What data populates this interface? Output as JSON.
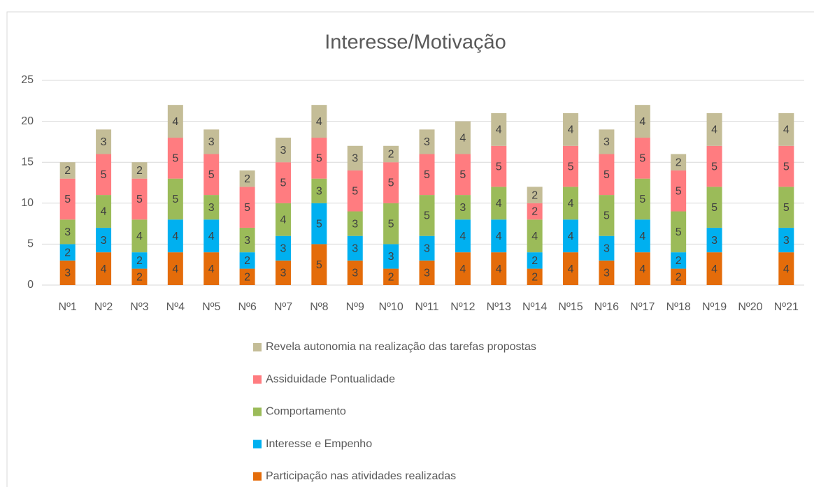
{
  "chart_data": {
    "type": "stacked_bar",
    "title": "Interesse/Motivação",
    "categories": [
      "Nº1",
      "Nº2",
      "Nº3",
      "Nº4",
      "Nº5",
      "Nº6",
      "Nº7",
      "Nº8",
      "Nº9",
      "Nº10",
      "Nº11",
      "Nº12",
      "Nº13",
      "Nº14",
      "Nº15",
      "Nº16",
      "Nº17",
      "Nº18",
      "Nº19",
      "Nº20",
      "Nº21"
    ],
    "series": [
      {
        "name": "Participação nas atividades realizadas",
        "color": "#e46c0a",
        "values": [
          3,
          4,
          2,
          4,
          4,
          2,
          3,
          5,
          3,
          2,
          3,
          4,
          4,
          2,
          4,
          3,
          4,
          2,
          4,
          null,
          4
        ]
      },
      {
        "name": "Interesse e Empenho",
        "color": "#00b0f0",
        "values": [
          2,
          3,
          2,
          4,
          4,
          2,
          3,
          5,
          3,
          3,
          3,
          4,
          4,
          2,
          4,
          3,
          4,
          2,
          3,
          null,
          3
        ]
      },
      {
        "name": "Comportamento",
        "color": "#9bbb59",
        "values": [
          3,
          4,
          4,
          5,
          3,
          3,
          4,
          3,
          3,
          5,
          5,
          3,
          4,
          4,
          4,
          5,
          5,
          5,
          5,
          null,
          5
        ]
      },
      {
        "name": "Assiduidade  Pontualidade",
        "color": "#ff7c80",
        "values": [
          5,
          5,
          5,
          5,
          5,
          5,
          5,
          5,
          5,
          5,
          5,
          5,
          5,
          2,
          5,
          5,
          5,
          5,
          5,
          null,
          5
        ]
      },
      {
        "name": "Revela autonomia na realização das tarefas propostas",
        "color": "#c4bd97",
        "values": [
          2,
          3,
          2,
          4,
          3,
          2,
          3,
          4,
          3,
          2,
          3,
          4,
          4,
          2,
          4,
          3,
          4,
          2,
          4,
          null,
          4
        ]
      }
    ],
    "ylim": [
      0,
      25
    ],
    "yticks": [
      0,
      5,
      10,
      15,
      20,
      25
    ],
    "grid": true,
    "legend": "bottom"
  }
}
